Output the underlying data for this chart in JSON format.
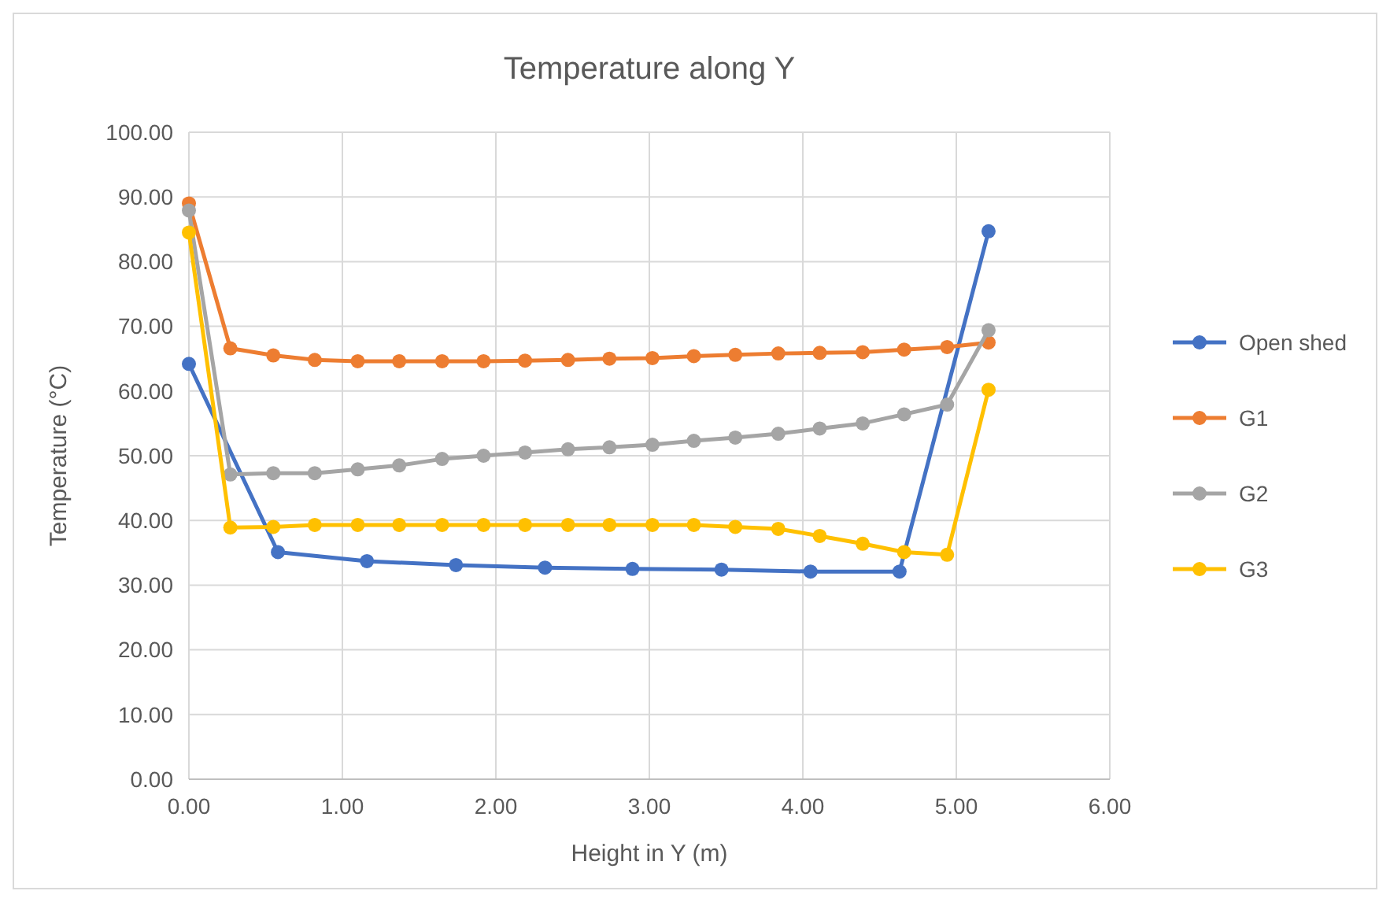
{
  "chart_data": {
    "type": "line",
    "title": "Temperature along Y",
    "xlabel": "Height in Y (m)",
    "ylabel": "Temperature (°C)",
    "xlim": [
      0,
      6
    ],
    "xticks": [
      {
        "value": 0,
        "label": "0.00"
      },
      {
        "value": 1,
        "label": "1.00"
      },
      {
        "value": 2,
        "label": "2.00"
      },
      {
        "value": 3,
        "label": "3.00"
      },
      {
        "value": 4,
        "label": "4.00"
      },
      {
        "value": 5,
        "label": "5.00"
      },
      {
        "value": 6,
        "label": "6.00"
      }
    ],
    "ylim": [
      0,
      100
    ],
    "yticks": [
      {
        "value": 0,
        "label": "0.00"
      },
      {
        "value": 10,
        "label": "10.00"
      },
      {
        "value": 20,
        "label": "20.00"
      },
      {
        "value": 30,
        "label": "30.00"
      },
      {
        "value": 40,
        "label": "40.00"
      },
      {
        "value": 50,
        "label": "50.00"
      },
      {
        "value": 60,
        "label": "60.00"
      },
      {
        "value": 70,
        "label": "70.00"
      },
      {
        "value": 80,
        "label": "80.00"
      },
      {
        "value": 90,
        "label": "90.00"
      },
      {
        "value": 100,
        "label": "100.00"
      }
    ],
    "grid": true,
    "legend": "right",
    "marker": "circle",
    "line_style": "solid",
    "series": [
      {
        "name": "Open shed",
        "color": "#4472c4",
        "x": [
          0,
          0.58,
          1.16,
          1.74,
          2.32,
          2.89,
          3.47,
          4.05,
          4.63,
          5.21
        ],
        "values": [
          64.2,
          35.1,
          33.7,
          33.1,
          32.7,
          32.5,
          32.4,
          32.1,
          32.1,
          84.7
        ]
      },
      {
        "name": "G1",
        "color": "#ed7d31",
        "x": [
          0,
          0.27,
          0.55,
          0.82,
          1.1,
          1.37,
          1.65,
          1.92,
          2.19,
          2.47,
          2.74,
          3.02,
          3.29,
          3.56,
          3.84,
          4.11,
          4.39,
          4.66,
          4.94,
          5.21
        ],
        "values": [
          89.0,
          66.6,
          65.5,
          64.8,
          64.6,
          64.6,
          64.6,
          64.6,
          64.7,
          64.8,
          65.0,
          65.1,
          65.4,
          65.6,
          65.8,
          65.9,
          66.0,
          66.4,
          66.8,
          67.5
        ]
      },
      {
        "name": "G2",
        "color": "#a5a5a5",
        "x": [
          0,
          0.27,
          0.55,
          0.82,
          1.1,
          1.37,
          1.65,
          1.92,
          2.19,
          2.47,
          2.74,
          3.02,
          3.29,
          3.56,
          3.84,
          4.11,
          4.39,
          4.66,
          4.94,
          5.21
        ],
        "values": [
          87.9,
          47.1,
          47.3,
          47.3,
          47.9,
          48.5,
          49.5,
          50.0,
          50.5,
          51.0,
          51.3,
          51.7,
          52.3,
          52.8,
          53.4,
          54.2,
          55.0,
          56.4,
          57.9,
          69.4
        ]
      },
      {
        "name": "G3",
        "color": "#ffc000",
        "x": [
          0,
          0.27,
          0.55,
          0.82,
          1.1,
          1.37,
          1.65,
          1.92,
          2.19,
          2.47,
          2.74,
          3.02,
          3.29,
          3.56,
          3.84,
          4.11,
          4.39,
          4.66,
          4.94,
          5.21
        ],
        "values": [
          84.5,
          38.9,
          39.0,
          39.3,
          39.3,
          39.3,
          39.3,
          39.3,
          39.3,
          39.3,
          39.3,
          39.3,
          39.3,
          39.0,
          38.7,
          37.6,
          36.4,
          35.1,
          34.7,
          60.2
        ]
      }
    ]
  }
}
